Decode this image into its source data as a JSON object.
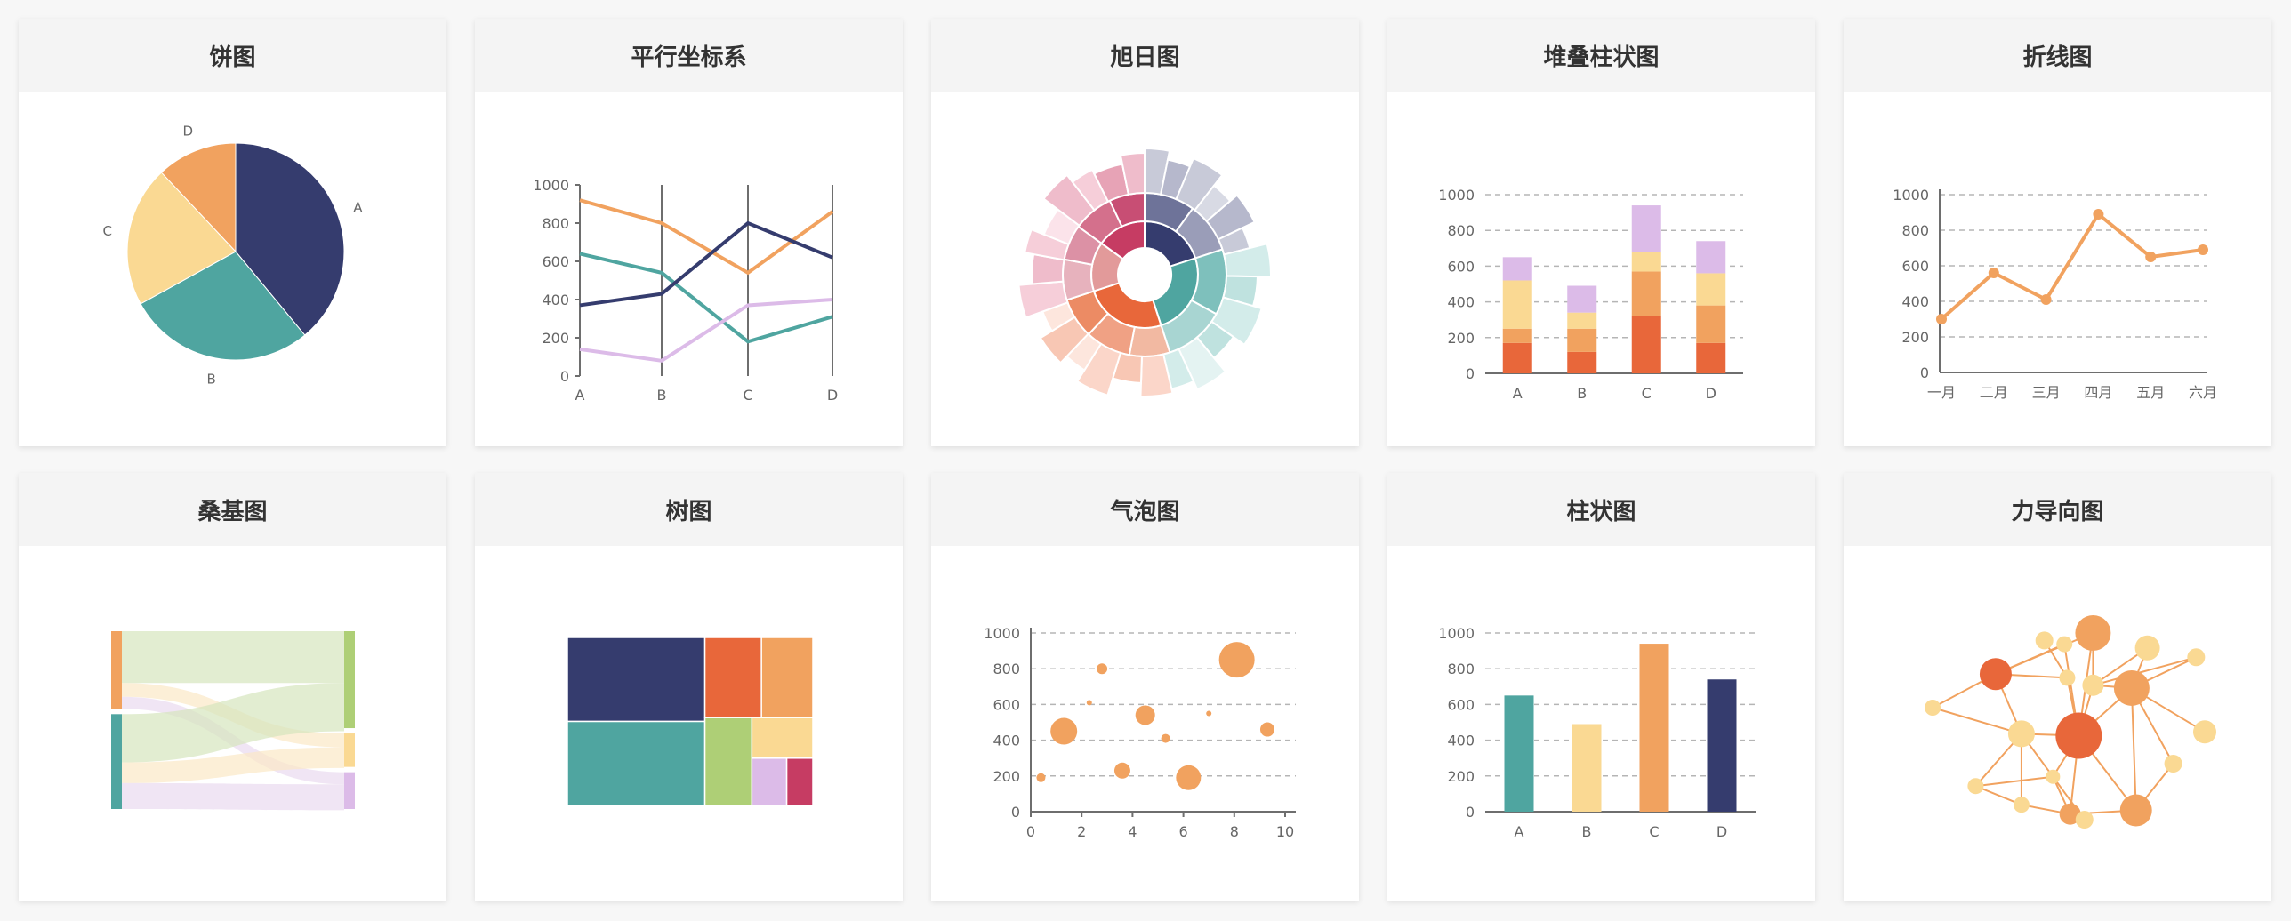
{
  "colors": {
    "navy": "#353c6e",
    "teal": "#4fa5a0",
    "yellow": "#fad993",
    "orange": "#f1a25f",
    "red": "#e8673a",
    "green": "#aecf76",
    "lavender": "#dcbbe8",
    "crimson": "#c63c63"
  },
  "charts": {
    "pie": {
      "title": "饼图",
      "chart_data": {
        "type": "pie",
        "slices": [
          {
            "label": "A",
            "value": 39,
            "color": "#353c6e"
          },
          {
            "label": "B",
            "value": 28,
            "color": "#4fa5a0"
          },
          {
            "label": "C",
            "value": 21,
            "color": "#fad993"
          },
          {
            "label": "D",
            "value": 12,
            "color": "#f1a25f"
          }
        ]
      }
    },
    "parallel": {
      "title": "平行坐标系",
      "chart_data": {
        "type": "line",
        "categories": [
          "A",
          "B",
          "C",
          "D"
        ],
        "yticks": [
          0,
          200,
          400,
          600,
          800,
          1000
        ],
        "ylim": [
          0,
          1000
        ],
        "series": [
          {
            "color": "#f1a25f",
            "values": [
              920,
              800,
              540,
              860
            ]
          },
          {
            "color": "#4fa5a0",
            "values": [
              640,
              540,
              180,
              310
            ]
          },
          {
            "color": "#353c6e",
            "values": [
              370,
              430,
              800,
              620
            ]
          },
          {
            "color": "#dcbbe8",
            "values": [
              140,
              80,
              370,
              400
            ]
          }
        ]
      }
    },
    "sunburst": {
      "title": "旭日图",
      "chart_data": {
        "type": "sunburst",
        "inner": [
          {
            "value": 20,
            "color": "#353c6e"
          },
          {
            "value": 25,
            "color": "#4fa5a0"
          },
          {
            "value": 25,
            "color": "#e8673a"
          },
          {
            "value": 15,
            "color": "#e29a9a"
          },
          {
            "value": 15,
            "color": "#c63c63"
          }
        ],
        "middle": [
          {
            "value": 10,
            "color": "#6e7399"
          },
          {
            "value": 10,
            "color": "#9a9db8"
          },
          {
            "value": 13,
            "color": "#7ec0bc"
          },
          {
            "value": 12,
            "color": "#a8d5d2"
          },
          {
            "value": 8,
            "color": "#f2b9a2"
          },
          {
            "value": 9,
            "color": "#f0a184"
          },
          {
            "value": 8,
            "color": "#ec8b64"
          },
          {
            "value": 8,
            "color": "#e7b2bd"
          },
          {
            "value": 7,
            "color": "#dc91a5"
          },
          {
            "value": 8,
            "color": "#d4708c"
          },
          {
            "value": 7,
            "color": "#c84e74"
          }
        ],
        "outer": [
          {
            "value": 3,
            "len": 1.0,
            "color": "#c8cad8"
          },
          {
            "value": 3,
            "len": 0.8,
            "color": "#b6b8cc"
          },
          {
            "value": 4,
            "len": 1.0,
            "color": "#c8cad8"
          },
          {
            "value": 3,
            "len": 0.7,
            "color": "#d8dae4"
          },
          {
            "value": 4,
            "len": 0.9,
            "color": "#b6b8cc"
          },
          {
            "value": 3,
            "len": 0.6,
            "color": "#c8cad8"
          },
          {
            "value": 4,
            "len": 1.0,
            "color": "#d3ecea"
          },
          {
            "value": 4,
            "len": 0.7,
            "color": "#bfe2df"
          },
          {
            "value": 5,
            "len": 0.9,
            "color": "#d3ecea"
          },
          {
            "value": 4,
            "len": 0.6,
            "color": "#bfe2df"
          },
          {
            "value": 4,
            "len": 1.0,
            "color": "#e4f3f2"
          },
          {
            "value": 3,
            "len": 0.8,
            "color": "#d3ecea"
          },
          {
            "value": 4,
            "len": 0.9,
            "color": "#fbd6c9"
          },
          {
            "value": 4,
            "len": 0.6,
            "color": "#f8c7b4"
          },
          {
            "value": 4,
            "len": 1.0,
            "color": "#fbd6c9"
          },
          {
            "value": 3,
            "len": 0.7,
            "color": "#fde6dd"
          },
          {
            "value": 4,
            "len": 0.9,
            "color": "#f8c7b4"
          },
          {
            "value": 3,
            "len": 0.6,
            "color": "#fde6dd"
          },
          {
            "value": 4,
            "len": 1.0,
            "color": "#f6ced9"
          },
          {
            "value": 4,
            "len": 0.7,
            "color": "#efbccb"
          },
          {
            "value": 3,
            "len": 0.9,
            "color": "#f6ced9"
          },
          {
            "value": 4,
            "len": 0.6,
            "color": "#fbe3ea"
          },
          {
            "value": 4,
            "len": 1.0,
            "color": "#efbccb"
          },
          {
            "value": 3,
            "len": 0.8,
            "color": "#f6ced9"
          },
          {
            "value": 4,
            "len": 0.7,
            "color": "#e7a3b6"
          },
          {
            "value": 3,
            "len": 0.9,
            "color": "#efbccb"
          }
        ]
      }
    },
    "stacked": {
      "title": "堆叠柱状图",
      "chart_data": {
        "type": "bar",
        "stacked": true,
        "categories": [
          "A",
          "B",
          "C",
          "D"
        ],
        "yticks": [
          0,
          200,
          400,
          600,
          800,
          1000
        ],
        "ylim": [
          0,
          1000
        ],
        "series": [
          {
            "color": "#e8673a",
            "values": [
              170,
              120,
              320,
              170
            ]
          },
          {
            "color": "#f1a25f",
            "values": [
              80,
              130,
              250,
              210
            ]
          },
          {
            "color": "#fad993",
            "values": [
              270,
              90,
              110,
              180
            ]
          },
          {
            "color": "#dcbbe8",
            "values": [
              130,
              150,
              260,
              180
            ]
          }
        ]
      }
    },
    "line": {
      "title": "折线图",
      "chart_data": {
        "type": "line",
        "categories": [
          "一月",
          "二月",
          "三月",
          "四月",
          "五月",
          "六月"
        ],
        "yticks": [
          0,
          200,
          400,
          600,
          800,
          1000
        ],
        "ylim": [
          0,
          1000
        ],
        "series": [
          {
            "color": "#f1a25f",
            "values": [
              300,
              560,
              410,
              890,
              650,
              690
            ]
          }
        ]
      }
    },
    "sankey": {
      "title": "桑基图",
      "chart_data": {
        "type": "sankey",
        "sources": [
          {
            "value": 45,
            "color": "#f1a25f"
          },
          {
            "value": 55,
            "color": "#4fa5a0"
          }
        ],
        "targets": [
          {
            "value": 58,
            "color": "#aecf76"
          },
          {
            "value": 20,
            "color": "#fad993"
          },
          {
            "value": 22,
            "color": "#dcbbe8"
          }
        ],
        "links": [
          {
            "source": 0,
            "target": 0,
            "value": 30,
            "color": "#d5e6bd"
          },
          {
            "source": 0,
            "target": 1,
            "value": 8,
            "color": "#fbe8c6"
          },
          {
            "source": 0,
            "target": 2,
            "value": 7,
            "color": "#e9daf0"
          },
          {
            "source": 1,
            "target": 0,
            "value": 28,
            "color": "#d5e6bd"
          },
          {
            "source": 1,
            "target": 1,
            "value": 12,
            "color": "#fbe8c6"
          },
          {
            "source": 1,
            "target": 2,
            "value": 15,
            "color": "#e9daf0"
          }
        ]
      }
    },
    "treemap": {
      "title": "树图",
      "chart_data": {
        "type": "treemap",
        "cells": [
          {
            "value": 28,
            "color": "#353c6e"
          },
          {
            "value": 28,
            "color": "#4fa5a0"
          },
          {
            "value": 11,
            "color": "#e8673a"
          },
          {
            "value": 10,
            "color": "#f1a25f"
          },
          {
            "value": 10,
            "color": "#aecf76"
          },
          {
            "value": 6,
            "color": "#fad993"
          },
          {
            "value": 4,
            "color": "#dcbbe8"
          },
          {
            "value": 3,
            "color": "#c63c63"
          }
        ]
      }
    },
    "bubble": {
      "title": "气泡图",
      "chart_data": {
        "type": "scatter",
        "xticks": [
          0,
          2,
          4,
          6,
          8,
          10
        ],
        "yticks": [
          0,
          200,
          400,
          600,
          800,
          1000
        ],
        "xlim": [
          0,
          10
        ],
        "ylim": [
          0,
          1000
        ],
        "color": "#f1a25f",
        "points": [
          {
            "x": 0.4,
            "y": 190,
            "size": 5
          },
          {
            "x": 1.3,
            "y": 450,
            "size": 15
          },
          {
            "x": 2.3,
            "y": 610,
            "size": 3
          },
          {
            "x": 2.8,
            "y": 800,
            "size": 6
          },
          {
            "x": 3.6,
            "y": 230,
            "size": 9
          },
          {
            "x": 4.5,
            "y": 540,
            "size": 11
          },
          {
            "x": 5.3,
            "y": 410,
            "size": 5
          },
          {
            "x": 6.2,
            "y": 190,
            "size": 14
          },
          {
            "x": 7.0,
            "y": 550,
            "size": 3
          },
          {
            "x": 8.1,
            "y": 850,
            "size": 20
          },
          {
            "x": 9.3,
            "y": 460,
            "size": 8
          }
        ]
      }
    },
    "bar": {
      "title": "柱状图",
      "chart_data": {
        "type": "bar",
        "categories": [
          "A",
          "B",
          "C",
          "D"
        ],
        "yticks": [
          0,
          200,
          400,
          600,
          800,
          1000
        ],
        "ylim": [
          0,
          1000
        ],
        "values": [
          650,
          490,
          940,
          740
        ],
        "colors": [
          "#4fa5a0",
          "#fad993",
          "#f1a25f",
          "#353c6e"
        ]
      }
    },
    "force": {
      "title": "力导向图",
      "chart_data": {
        "type": "graph",
        "nodes": [
          {
            "x": 0.745,
            "y": 0.295,
            "size": 20,
            "color": "#f1a25f"
          },
          {
            "x": 0.51,
            "y": 0.06,
            "size": 9,
            "color": "#fad993"
          },
          {
            "x": 0.61,
            "y": 0.28,
            "size": 12,
            "color": "#fad993"
          },
          {
            "x": 0.56,
            "y": 0.55,
            "size": 26,
            "color": "#e8673a"
          },
          {
            "x": 0.27,
            "y": 0.22,
            "size": 18,
            "color": "#e8673a"
          },
          {
            "x": 0.36,
            "y": 0.54,
            "size": 15,
            "color": "#fad993"
          },
          {
            "x": 0.05,
            "y": 0.4,
            "size": 9,
            "color": "#fad993"
          },
          {
            "x": 0.44,
            "y": 0.04,
            "size": 10,
            "color": "#fad993"
          },
          {
            "x": 0.61,
            "y": 0.0,
            "size": 20,
            "color": "#f1a25f"
          },
          {
            "x": 0.8,
            "y": 0.08,
            "size": 14,
            "color": "#fad993"
          },
          {
            "x": 0.97,
            "y": 0.13,
            "size": 10,
            "color": "#fad993"
          },
          {
            "x": 1.0,
            "y": 0.53,
            "size": 13,
            "color": "#fad993"
          },
          {
            "x": 0.89,
            "y": 0.7,
            "size": 10,
            "color": "#fad993"
          },
          {
            "x": 0.52,
            "y": 0.24,
            "size": 9,
            "color": "#fad993"
          },
          {
            "x": 0.47,
            "y": 0.77,
            "size": 8,
            "color": "#fad993"
          },
          {
            "x": 0.36,
            "y": 0.92,
            "size": 9,
            "color": "#fad993"
          },
          {
            "x": 0.2,
            "y": 0.82,
            "size": 9,
            "color": "#fad993"
          },
          {
            "x": 0.53,
            "y": 0.97,
            "size": 12,
            "color": "#f1a25f"
          },
          {
            "x": 0.76,
            "y": 0.95,
            "size": 18,
            "color": "#f1a25f"
          },
          {
            "x": 0.58,
            "y": 1.0,
            "size": 10,
            "color": "#fad993"
          }
        ],
        "edges": [
          [
            0,
            3
          ],
          [
            0,
            9
          ],
          [
            0,
            10
          ],
          [
            0,
            11
          ],
          [
            0,
            12
          ],
          [
            0,
            18
          ],
          [
            0,
            2
          ],
          [
            1,
            4
          ],
          [
            1,
            3
          ],
          [
            2,
            3
          ],
          [
            3,
            5
          ],
          [
            3,
            14
          ],
          [
            3,
            17
          ],
          [
            3,
            18
          ],
          [
            3,
            8
          ],
          [
            4,
            6
          ],
          [
            4,
            5
          ],
          [
            4,
            13
          ],
          [
            4,
            8
          ],
          [
            5,
            16
          ],
          [
            5,
            15
          ],
          [
            5,
            14
          ],
          [
            7,
            13
          ],
          [
            13,
            3
          ],
          [
            9,
            2
          ],
          [
            14,
            17
          ],
          [
            14,
            16
          ],
          [
            15,
            17
          ],
          [
            16,
            15
          ],
          [
            17,
            18
          ],
          [
            17,
            19
          ],
          [
            2,
            10
          ],
          [
            12,
            18
          ],
          [
            6,
            5
          ],
          [
            8,
            2
          ],
          [
            19,
            14
          ]
        ]
      }
    }
  }
}
